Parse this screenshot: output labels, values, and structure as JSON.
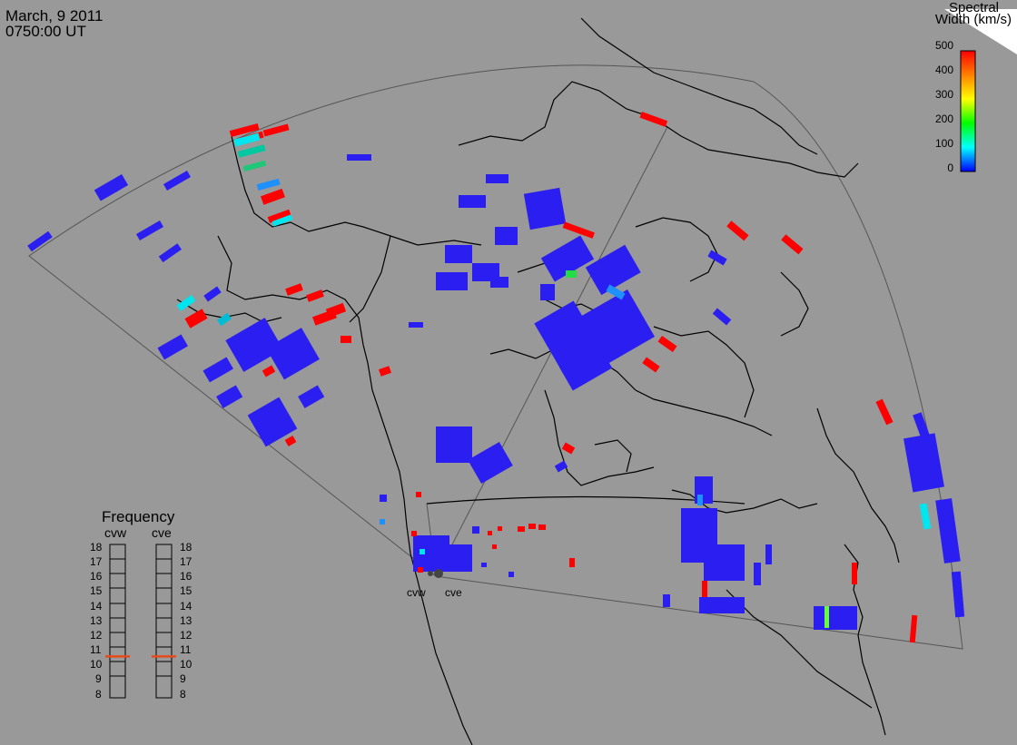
{
  "header": {
    "date": "March, 9 2011",
    "time": "0750:00 UT"
  },
  "colorbar": {
    "title_line1": "Spectral",
    "title_line2": "Width (km/s)",
    "ticks": [
      "500",
      "400",
      "300",
      "200",
      "100",
      "0"
    ],
    "min": 0,
    "max": 500,
    "colors": [
      "#ff0000",
      "#ff8000",
      "#ffff00",
      "#00ff00",
      "#00ffff",
      "#0000ff"
    ]
  },
  "frequency_panel": {
    "title": "Frequency",
    "radars": [
      {
        "label": "cvw",
        "frequency_mhz": 10.7
      },
      {
        "label": "cve",
        "frequency_mhz": 10.7
      }
    ],
    "scale": [
      "18",
      "17",
      "16",
      "15",
      "14",
      "13",
      "12",
      "11",
      "10",
      "9",
      "8"
    ]
  },
  "sites": [
    {
      "label": "cvw"
    },
    {
      "label": "cve"
    }
  ],
  "colors": {
    "background": "#999999",
    "coast": "#000000",
    "fov": "#555555",
    "scatter_low": "#2a1ef0",
    "scatter_high": "#ff0000",
    "cyan": "#00e5ee",
    "marker": "#e64a19"
  }
}
